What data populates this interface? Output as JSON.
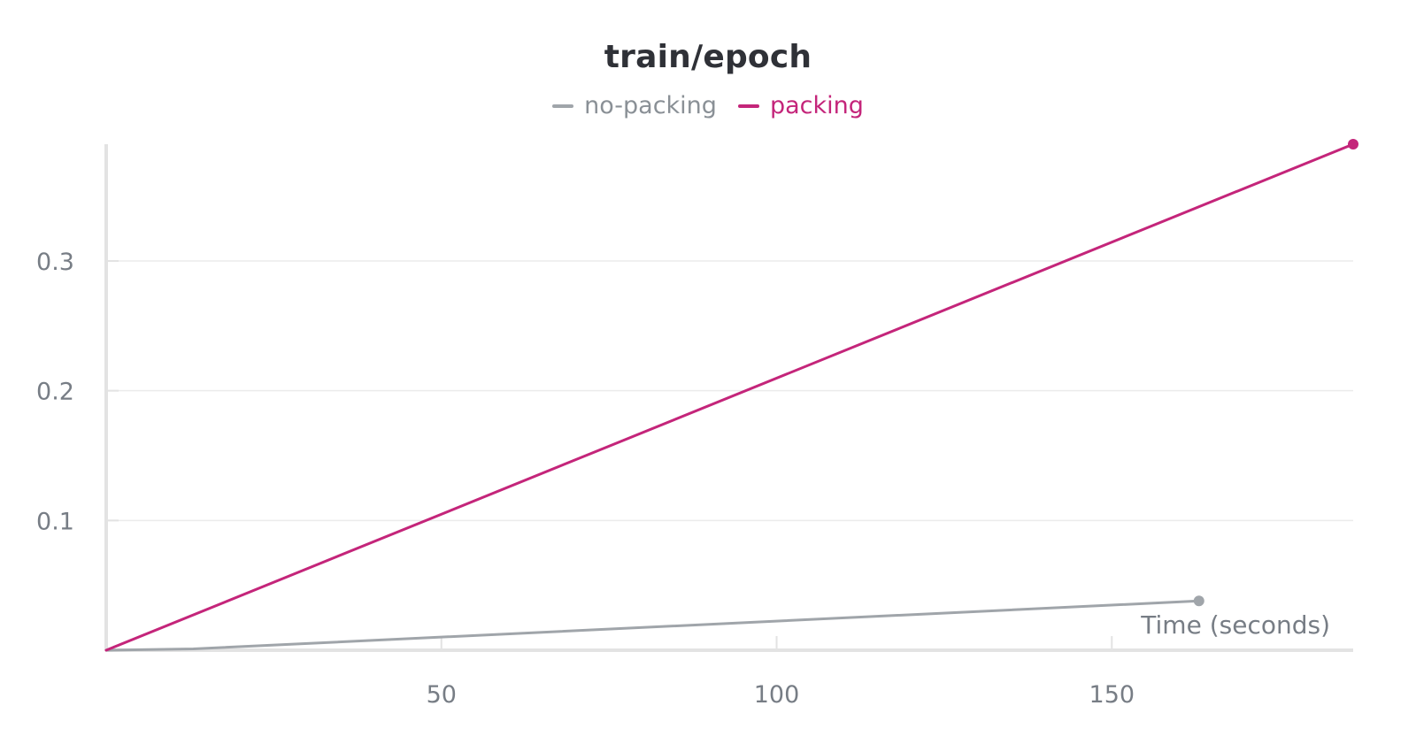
{
  "chart_data": {
    "type": "line",
    "title": "train/epoch",
    "xlabel": "Time (seconds)",
    "ylabel": "",
    "xlim": [
      0,
      186
    ],
    "ylim": [
      0,
      0.39
    ],
    "x_ticks": [
      50,
      100,
      150
    ],
    "x_tick_labels": [
      "50",
      "100",
      "150"
    ],
    "y_ticks": [
      0.1,
      0.2,
      0.3
    ],
    "y_tick_labels": [
      "0.1",
      "0.2",
      "0.3"
    ],
    "grid": true,
    "legend_position": "top-center",
    "series": [
      {
        "name": "no-packing",
        "color": "#a0a5aa",
        "x": [
          0,
          13,
          163
        ],
        "y": [
          0,
          0.001,
          0.038
        ],
        "end_marker": true
      },
      {
        "name": "packing",
        "color": "#c4257a",
        "x": [
          0,
          186
        ],
        "y": [
          0,
          0.39
        ],
        "end_marker": true
      }
    ]
  }
}
